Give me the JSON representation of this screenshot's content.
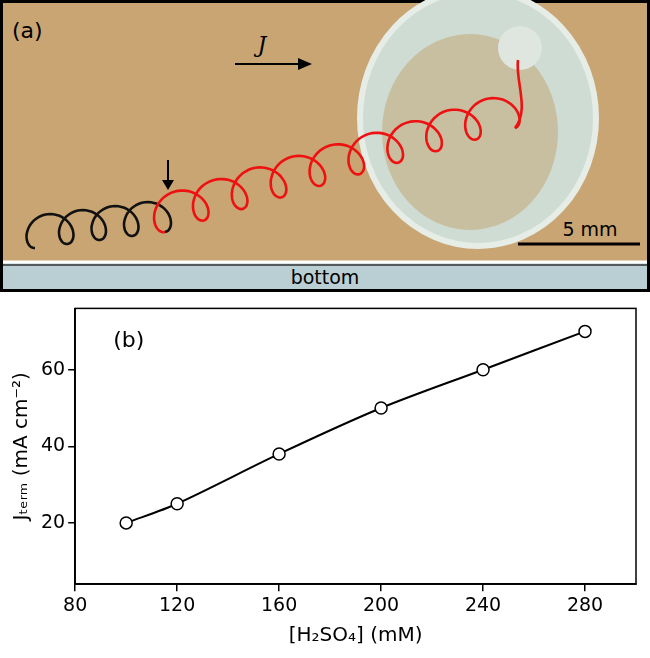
{
  "panel_a": {
    "label": "(a)",
    "arrow_label": "J",
    "scale_bar": "5 mm",
    "wall_label": "bottom"
  },
  "chart_data": {
    "type": "line",
    "panel_label": "(b)",
    "x_label": "[H₂SO₄] (mM)",
    "y_label": "Jₜₑᵣₘ (mA cm⁻²)",
    "x": [
      100,
      120,
      160,
      200,
      240,
      280
    ],
    "values": [
      20,
      25,
      38,
      50,
      60,
      70
    ],
    "color": "#000000",
    "marker": "open_circle",
    "line_style": "solid",
    "xlim": [
      80,
      300
    ],
    "xticks": [
      80,
      120,
      160,
      200,
      240,
      280
    ],
    "ylim": [
      4,
      76
    ],
    "yticks": [
      20,
      40,
      60
    ],
    "grid": false
  }
}
